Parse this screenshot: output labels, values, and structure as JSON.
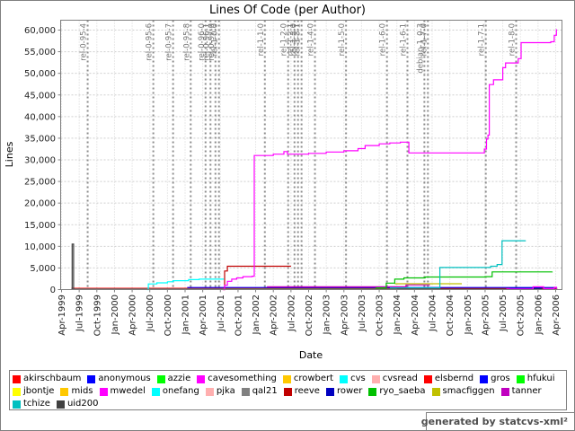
{
  "footer": {
    "text": "generated by statcvs-xml²"
  },
  "chart_data": {
    "type": "line",
    "title": "Lines Of Code (per Author)",
    "xlabel": "Date",
    "ylabel": "Lines",
    "x_range_years": [
      1999.25,
      2006.33
    ],
    "ylim": [
      0,
      62000
    ],
    "y_tick_step": 5000,
    "grid": true,
    "legend_position": "bottom",
    "y_tick_labels": [
      "0",
      "5,000",
      "10,000",
      "15,000",
      "20,000",
      "25,000",
      "30,000",
      "35,000",
      "40,000",
      "45,000",
      "50,000",
      "55,000",
      "60,000"
    ],
    "x_tick_labels": [
      "Apr-1999",
      "Jul-1999",
      "Oct-1999",
      "Jan-2000",
      "Apr-2000",
      "Jul-2000",
      "Oct-2000",
      "Jan-2001",
      "Apr-2001",
      "Jul-2001",
      "Oct-2001",
      "Jan-2002",
      "Apr-2002",
      "Jul-2002",
      "Oct-2002",
      "Jan-2003",
      "Apr-2003",
      "Jul-2003",
      "Oct-2003",
      "Jan-2004",
      "Apr-2004",
      "Jul-2004",
      "Oct-2004",
      "Jan-2005",
      "Apr-2005",
      "Jul-2005",
      "Oct-2005",
      "Jan-2006",
      "Apr-2006"
    ],
    "authors": [
      {
        "name": "akirschbaum",
        "color": "#ff0000"
      },
      {
        "name": "anonymous",
        "color": "#0000ff"
      },
      {
        "name": "azzie",
        "color": "#00ff00"
      },
      {
        "name": "cavesomething",
        "color": "#ff00ff"
      },
      {
        "name": "crowbert",
        "color": "#ffc800"
      },
      {
        "name": "cvs",
        "color": "#00ffff"
      },
      {
        "name": "cvsread",
        "color": "#ffafaf"
      },
      {
        "name": "elsbernd",
        "color": "#ff0000"
      },
      {
        "name": "gros",
        "color": "#0000ff"
      },
      {
        "name": "hfukui",
        "color": "#00ff00"
      },
      {
        "name": "jbontje",
        "color": "#ffff00"
      },
      {
        "name": "mids",
        "color": "#ffc800"
      },
      {
        "name": "mwedel",
        "color": "#ff00ff"
      },
      {
        "name": "onefang",
        "color": "#00ffff"
      },
      {
        "name": "pjka",
        "color": "#ffafaf"
      },
      {
        "name": "qal21",
        "color": "#808080"
      },
      {
        "name": "reeve",
        "color": "#c00000"
      },
      {
        "name": "rower",
        "color": "#0000c0"
      },
      {
        "name": "ryo_saeba",
        "color": "#00c000"
      },
      {
        "name": "smacfiggen",
        "color": "#c0c000"
      },
      {
        "name": "tanner",
        "color": "#c000c0"
      },
      {
        "name": "tchize",
        "color": "#00c0c0"
      },
      {
        "name": "uid200",
        "color": "#404040"
      }
    ],
    "legend_rows": [
      10,
      11,
      2
    ],
    "releases": [
      {
        "label": "rel-0-95-4",
        "x": 1999.62
      },
      {
        "label": "rel-0-95-6",
        "x": 2000.55
      },
      {
        "label": "rel-0-95-7",
        "x": 2000.83
      },
      {
        "label": "rel-0-95-8",
        "x": 2001.08
      },
      {
        "label": "rel-0-96-0",
        "x": 2001.29
      },
      {
        "label": "rel-0-96-1",
        "x": 2001.36
      },
      {
        "label": "rel-0-97-0",
        "x": 2001.43
      },
      {
        "label": "rel-1-0-0",
        "x": 2001.48
      },
      {
        "label": "rel-1-1-0",
        "x": 2002.13
      },
      {
        "label": "rel-1-2-0",
        "x": 2002.46
      },
      {
        "label": "rel-1-2-1",
        "x": 2002.55
      },
      {
        "label": "rel-1-3-0",
        "x": 2002.6
      },
      {
        "label": "rel-1-3-1",
        "x": 2002.65
      },
      {
        "label": "rel-1-4-0",
        "x": 2002.84
      },
      {
        "label": "rel-1-5-0",
        "x": 2003.28
      },
      {
        "label": "rel-1-6-0",
        "x": 2003.86
      },
      {
        "label": "rel-1-6-1",
        "x": 2004.15
      },
      {
        "label": "debian-1_0-3",
        "x": 2004.39
      },
      {
        "label": "rel-1-7-0",
        "x": 2004.44
      },
      {
        "label": "rel-1-7-1",
        "x": 2005.26
      },
      {
        "label": "rel-1-8-0",
        "x": 2005.69
      }
    ],
    "series": [
      {
        "name": "akirschbaum",
        "points": [
          [
            1999.39,
            300
          ],
          [
            2006.27,
            300
          ]
        ]
      },
      {
        "name": "cvsread",
        "points": [
          [
            1999.39,
            160
          ],
          [
            2006.27,
            160
          ]
        ]
      },
      {
        "name": "anonymous",
        "points": [
          [
            1999.39,
            50
          ],
          [
            2006.27,
            50
          ]
        ]
      },
      {
        "name": "hfukui",
        "points": [
          [
            2000.3,
            80
          ],
          [
            2006.27,
            80
          ]
        ]
      },
      {
        "name": "pjka",
        "points": [
          [
            2002.0,
            100
          ],
          [
            2006.27,
            100
          ]
        ]
      },
      {
        "name": "qal21",
        "points": [
          [
            2002.9,
            120
          ],
          [
            2006.27,
            120
          ]
        ]
      },
      {
        "name": "mids",
        "points": [
          [
            2002.2,
            60
          ],
          [
            2006.27,
            60
          ]
        ]
      },
      {
        "name": "onefang",
        "points": [
          [
            2001.7,
            40
          ],
          [
            2006.27,
            40
          ]
        ]
      },
      {
        "name": "azzie",
        "points": [
          [
            2004.6,
            55
          ],
          [
            2006.27,
            55
          ]
        ]
      },
      {
        "name": "crowbert",
        "points": [
          [
            2001.56,
            130
          ],
          [
            2006.27,
            130
          ]
        ]
      },
      {
        "name": "jbontje",
        "points": [
          [
            2001.6,
            90
          ],
          [
            2006.27,
            90
          ]
        ]
      },
      {
        "name": "elsbernd",
        "points": [
          [
            2004.0,
            220
          ],
          [
            2006.27,
            220
          ]
        ]
      },
      {
        "name": "gros",
        "points": [
          [
            2001.03,
            480
          ],
          [
            2006.27,
            480
          ]
        ]
      },
      {
        "name": "rower",
        "points": [
          [
            2005.6,
            280
          ],
          [
            2006.05,
            280
          ]
        ]
      },
      {
        "name": "uid200",
        "points": [
          [
            1999.39,
            100
          ],
          [
            1999.4,
            10500
          ],
          [
            1999.42,
            100
          ],
          [
            2006.27,
            100
          ]
        ]
      },
      {
        "name": "cvs",
        "points": [
          [
            2000.46,
            0
          ],
          [
            2000.48,
            1300
          ],
          [
            2000.6,
            1550
          ],
          [
            2000.75,
            1800
          ],
          [
            2000.83,
            2050
          ],
          [
            2001.05,
            2300
          ],
          [
            2001.2,
            2400
          ],
          [
            2001.55,
            2400
          ]
        ]
      },
      {
        "name": "reeve",
        "points": [
          [
            2001.54,
            0
          ],
          [
            2001.56,
            4300
          ],
          [
            2001.6,
            5400
          ],
          [
            2002.5,
            5400
          ]
        ]
      },
      {
        "name": "tanner",
        "points": [
          [
            2002.16,
            640
          ],
          [
            2004.1,
            640
          ],
          [
            2004.13,
            1070
          ],
          [
            2004.47,
            1070
          ]
        ]
      },
      {
        "name": "smacfiggen",
        "points": [
          [
            2003.97,
            1350
          ],
          [
            2004.92,
            1350
          ]
        ]
      },
      {
        "name": "ryo_saeba",
        "points": [
          [
            2003.7,
            400
          ],
          [
            2003.85,
            1500
          ],
          [
            2003.97,
            2400
          ],
          [
            2004.1,
            2700
          ],
          [
            2004.4,
            2900
          ],
          [
            2005.25,
            3000
          ],
          [
            2005.35,
            4100
          ],
          [
            2006.2,
            4150
          ]
        ]
      },
      {
        "name": "tchize",
        "points": [
          [
            2003.9,
            400
          ],
          [
            2004.59,
            400
          ],
          [
            2004.61,
            5100
          ],
          [
            2005.33,
            5400
          ],
          [
            2005.42,
            5800
          ],
          [
            2005.49,
            11300
          ],
          [
            2005.82,
            11400
          ]
        ]
      },
      {
        "name": "cavesomething",
        "points": [
          [
            2005.55,
            150
          ],
          [
            2005.9,
            150
          ],
          [
            2005.93,
            650
          ],
          [
            2006.05,
            650
          ],
          [
            2006.08,
            200
          ],
          [
            2006.2,
            200
          ],
          [
            2006.23,
            520
          ],
          [
            2006.26,
            150
          ]
        ]
      },
      {
        "name": "mwedel",
        "points": [
          [
            2001.53,
            0
          ],
          [
            2001.56,
            1000
          ],
          [
            2001.6,
            1900
          ],
          [
            2001.66,
            2400
          ],
          [
            2001.73,
            2700
          ],
          [
            2001.82,
            3000
          ],
          [
            2001.95,
            3100
          ],
          [
            2001.98,
            31000
          ],
          [
            2002.25,
            31300
          ],
          [
            2002.4,
            31900
          ],
          [
            2002.45,
            31300
          ],
          [
            2002.75,
            31500
          ],
          [
            2003.0,
            31800
          ],
          [
            2003.25,
            32100
          ],
          [
            2003.45,
            32600
          ],
          [
            2003.55,
            33300
          ],
          [
            2003.75,
            33700
          ],
          [
            2003.9,
            33900
          ],
          [
            2004.05,
            34100
          ],
          [
            2004.17,
            31600
          ],
          [
            2005.2,
            31600
          ],
          [
            2005.24,
            32500
          ],
          [
            2005.27,
            34800
          ],
          [
            2005.29,
            35700
          ],
          [
            2005.31,
            47400
          ],
          [
            2005.37,
            48500
          ],
          [
            2005.5,
            51300
          ],
          [
            2005.54,
            52400
          ],
          [
            2005.72,
            53400
          ],
          [
            2005.76,
            57100
          ],
          [
            2006.18,
            57300
          ],
          [
            2006.23,
            58800
          ],
          [
            2006.26,
            60200
          ]
        ]
      }
    ]
  }
}
